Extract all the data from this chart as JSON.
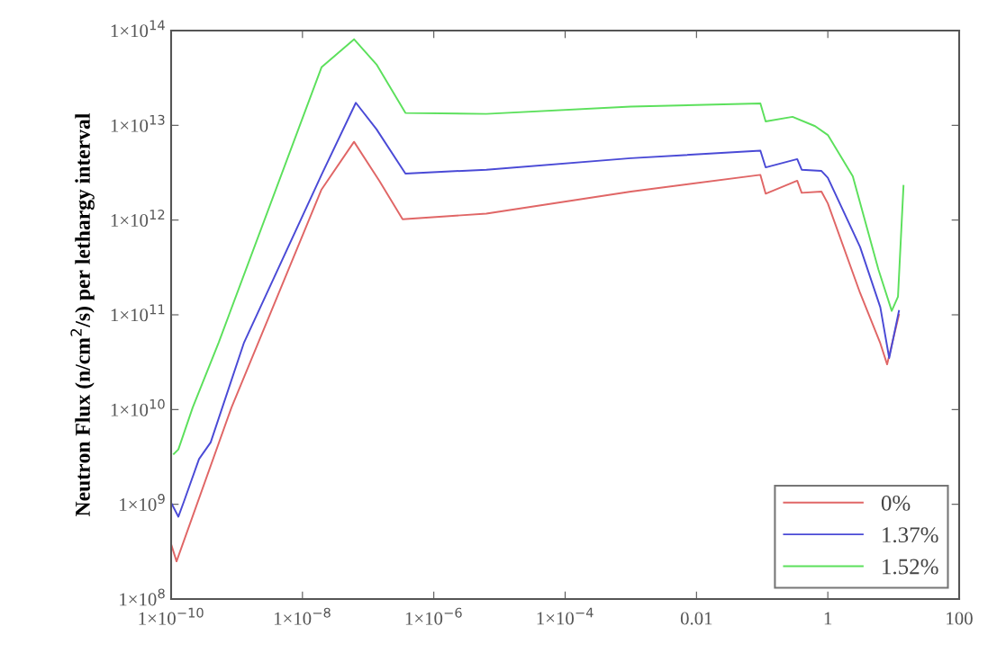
{
  "chart_data": {
    "type": "line",
    "ylabel": "Neutron Flux (n/cm$^{2}$/s) per lethargy interval",
    "log": "xy",
    "grid": false,
    "legend": "bottom right",
    "marker": "none",
    "line_style": "solid",
    "xlim": [
      1e-10,
      100
    ],
    "ylim": [
      100000000.0,
      100000000000000.0
    ],
    "xticks": [
      {
        "value": 1e-10,
        "label": "1×10$^{−10}$"
      },
      {
        "value": 1e-08,
        "label": "1×10$^{−8}$"
      },
      {
        "value": 1e-06,
        "label": "1×10$^{−6}$"
      },
      {
        "value": 0.0001,
        "label": "1×10$^{−4}$"
      },
      0.01,
      1,
      100
    ],
    "yticks": [
      {
        "value": 100000000.0,
        "label": "1×10$^{8}$"
      },
      {
        "value": 1000000000.0,
        "label": "1×10$^{9}$"
      },
      {
        "value": 10000000000.0,
        "label": "1×10$^{10}$"
      },
      {
        "value": 100000000000.0,
        "label": "1×10$^{11}$"
      },
      {
        "value": 1000000000000.0,
        "label": "1×10$^{12}$"
      },
      {
        "value": 10000000000000.0,
        "label": "1×10$^{13}$"
      },
      {
        "value": 100000000000000.0,
        "label": "1×10$^{14}$"
      }
    ],
    "series": [
      {
        "name": "0%",
        "color": "#e06666",
        "x": [
          1e-10,
          1.21e-10,
          8.3e-10,
          1.95e-08,
          6.1e-08,
          1.48e-07,
          3.35e-07,
          6.3e-06,
          0.001,
          0.094,
          0.113,
          0.342,
          0.4,
          0.8,
          1,
          3.1,
          6.3,
          8.0,
          12.1
        ],
        "values": [
          380000000.0,
          250000000.0,
          10500000000.0,
          2100000000000.0,
          6700000000000.0,
          2600000000000.0,
          1020000000000.0,
          1170000000000.0,
          2000000000000.0,
          3000000000000.0,
          1900000000000.0,
          2600000000000.0,
          1940000000000.0,
          2000000000000.0,
          1500000000000.0,
          170000000000.0,
          50000000000.0,
          30000000000.0,
          100000000000.0
        ]
      },
      {
        "name": "1.37%",
        "color": "#4a4ad6",
        "x": [
          1.03e-10,
          1.29e-10,
          1.56e-10,
          2.66e-10,
          4e-10,
          1.29e-09,
          1.95e-08,
          6.5e-08,
          1.34e-07,
          3.7e-07,
          6.3e-06,
          0.001,
          0.094,
          0.113,
          0.342,
          0.4,
          0.8,
          1,
          3.1,
          6.3,
          8.6,
          12.1
        ],
        "values": [
          1000000000.0,
          740000000.0,
          1060000000.0,
          3000000000.0,
          4500000000.0,
          51000000000.0,
          3000000000000.0,
          17300000000000.0,
          9100000000000.0,
          3100000000000.0,
          3400000000000.0,
          4500000000000.0,
          5400000000000.0,
          3600000000000.0,
          4400000000000.0,
          3400000000000.0,
          3300000000000.0,
          2800000000000.0,
          520000000000.0,
          120000000000.0,
          35000000000.0,
          110000000000.0
        ]
      },
      {
        "name": "1.52%",
        "color": "#5ce05c",
        "x": [
          1.1e-10,
          1.29e-10,
          2.13e-10,
          5.3e-10,
          1.95e-08,
          6.1e-08,
          1.34e-07,
          3.7e-07,
          6.3e-06,
          0.001,
          0.094,
          0.113,
          0.29,
          0.64,
          1,
          2.4,
          5.9,
          9.4,
          11.7,
          14.2
        ],
        "values": [
          3400000000.0,
          3800000000.0,
          10500000000.0,
          51000000000.0,
          41000000000000.0,
          81000000000000.0,
          44000000000000.0,
          13500000000000.0,
          13200000000000.0,
          15800000000000.0,
          17000000000000.0,
          11000000000000.0,
          12300000000000.0,
          9800000000000.0,
          7900000000000.0,
          2900000000000.0,
          300000000000.0,
          110000000000.0,
          155000000000.0,
          2300000000000.0
        ]
      }
    ]
  }
}
